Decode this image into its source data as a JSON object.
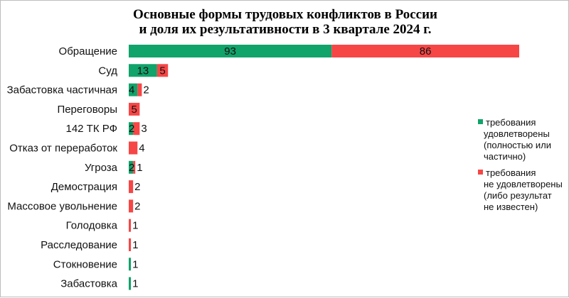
{
  "chart_data": {
    "type": "bar",
    "orientation": "horizontal",
    "stacked": true,
    "title_lines": [
      "Основные формы трудовых конфликтов в России",
      "и доля их результативности в 3 квартале 2024 г."
    ],
    "categories": [
      "Обращение",
      "Суд",
      "Забастовка частичная",
      "Переговоры",
      "142 ТК РФ",
      "Отказ от переработок",
      "Угроза",
      "Демострация",
      "Массовое увольнение",
      "Голодовка",
      "Расследование",
      "Стокновение",
      "Забастовка"
    ],
    "series": [
      {
        "legend_lines": [
          "требования",
          "удовлетворены",
          "(полностью или",
          "частично)"
        ],
        "color": "#10a36a",
        "values": [
          93,
          13,
          4,
          0,
          2,
          0,
          2,
          0,
          0,
          0,
          0,
          1,
          1
        ]
      },
      {
        "legend_lines": [
          "требования",
          "не удовлетворены",
          "(либо результат",
          "не известен)"
        ],
        "color": "#f64646",
        "values": [
          86,
          5,
          2,
          5,
          3,
          4,
          1,
          2,
          2,
          1,
          1,
          0,
          0
        ]
      }
    ],
    "xlim": [
      0,
      179
    ],
    "grid": false,
    "legend_position": "right"
  }
}
